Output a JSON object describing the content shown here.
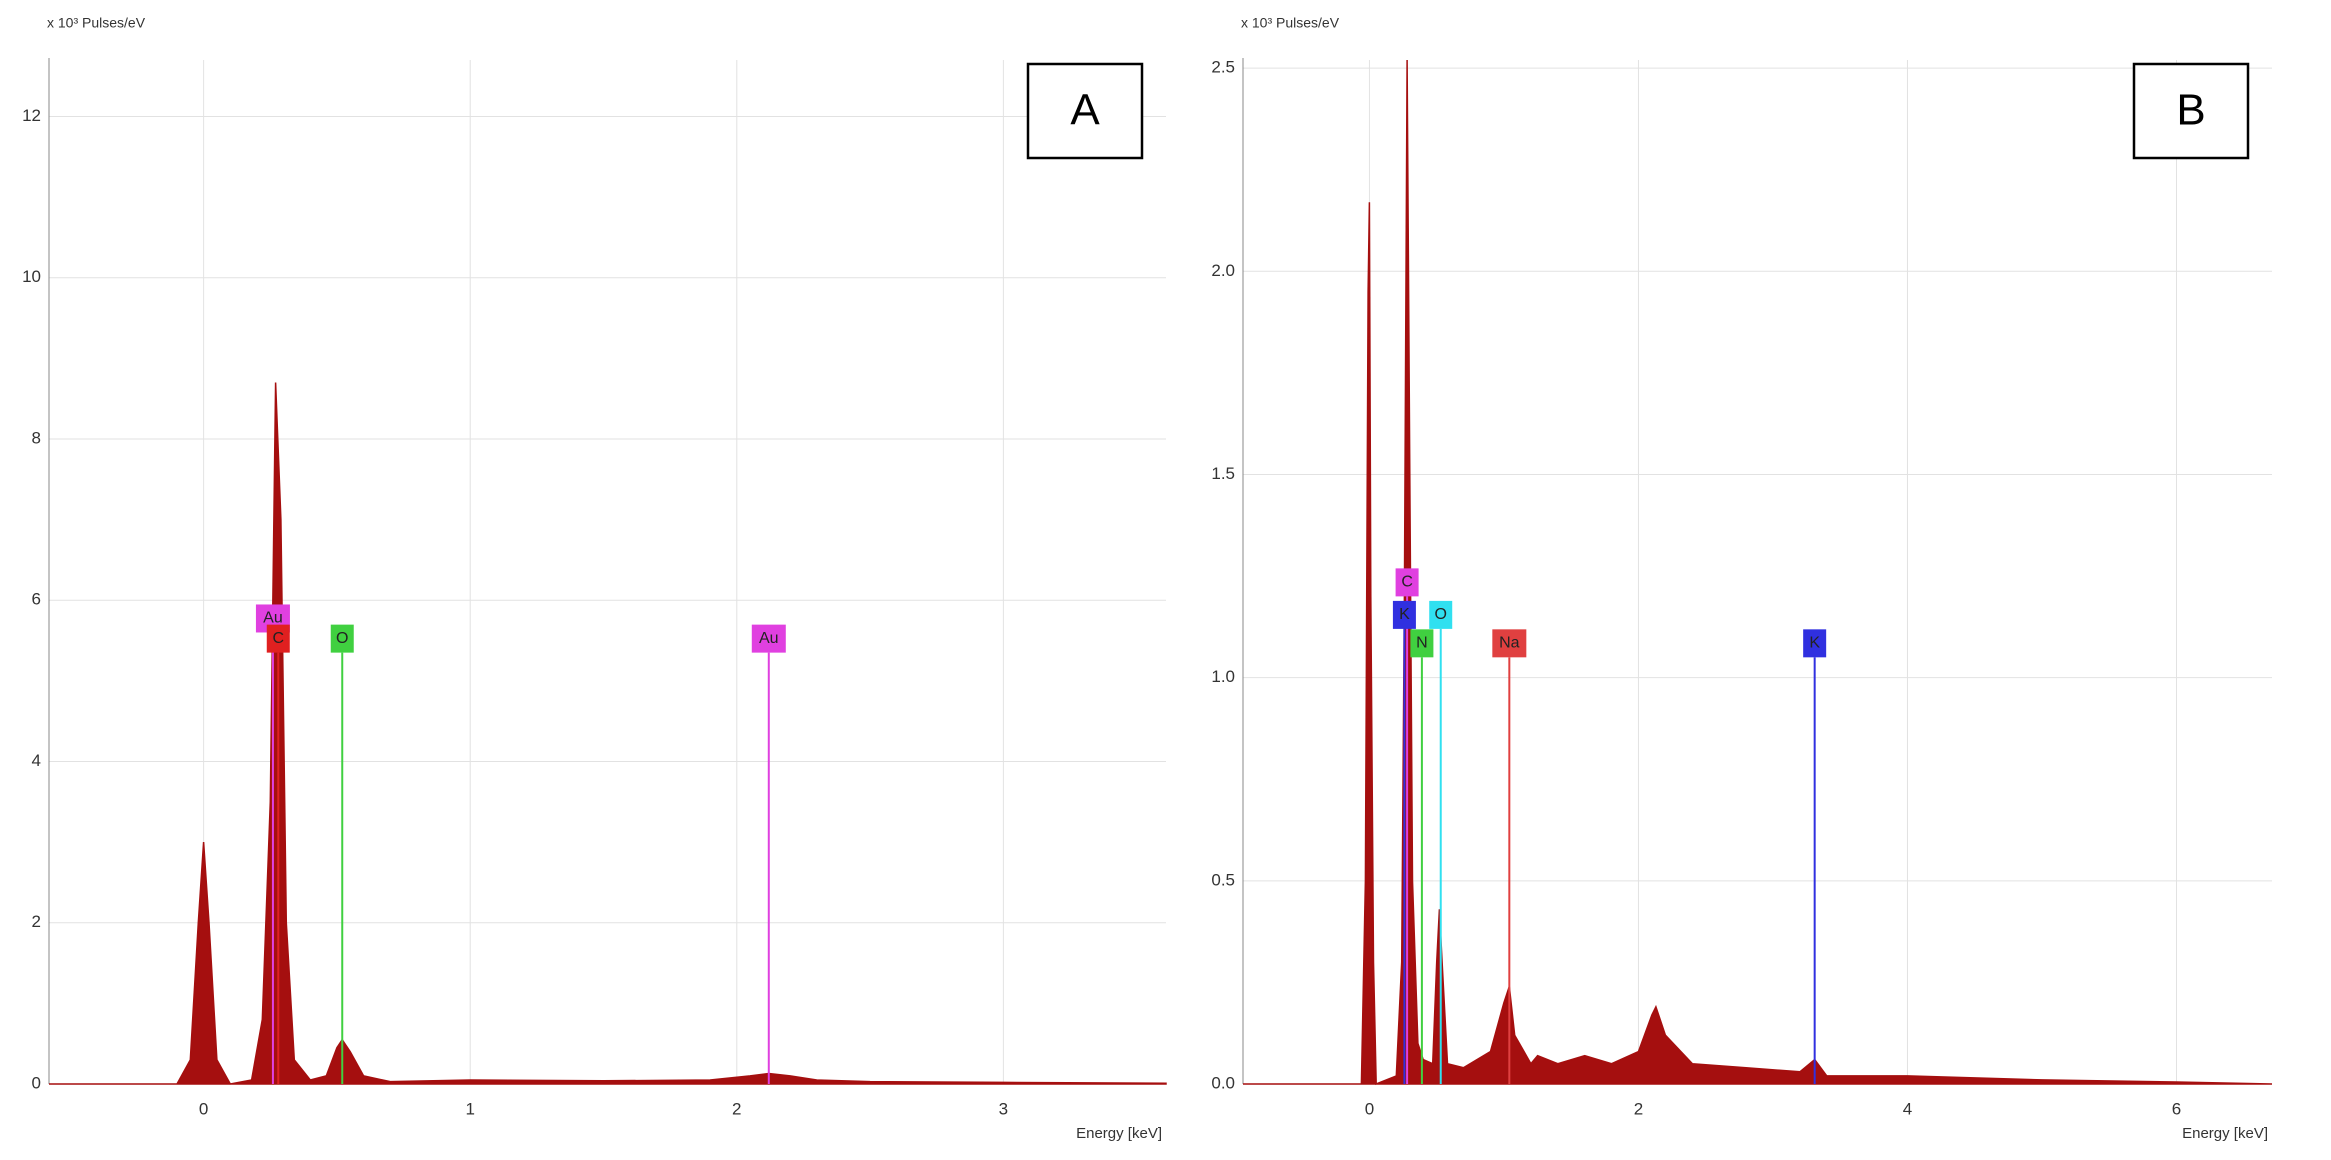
{
  "chart_data": [
    {
      "type": "area",
      "title": "A",
      "ylabel": "x 10³ Pulses/eV",
      "xlabel": "Energy [keV]",
      "color": "#a50f0f",
      "xlim": [
        -0.58,
        3.61
      ],
      "ylim": [
        0,
        12.7
      ],
      "xticks": [
        0,
        1,
        2,
        3
      ],
      "yticks": [
        0,
        2,
        4,
        6,
        8,
        10,
        12
      ],
      "grid": true,
      "x": [
        -0.58,
        -0.1,
        -0.05,
        -0.02,
        0,
        0.02,
        0.05,
        0.1,
        0.18,
        0.22,
        0.25,
        0.27,
        0.29,
        0.31,
        0.34,
        0.4,
        0.46,
        0.5,
        0.52,
        0.55,
        0.6,
        0.7,
        1.0,
        1.5,
        1.9,
        2.05,
        2.12,
        2.2,
        2.3,
        2.5,
        3.0,
        3.61
      ],
      "values": [
        0,
        0,
        0.3,
        2.0,
        3.0,
        2.0,
        0.3,
        0,
        0.05,
        0.8,
        3.5,
        8.7,
        7.0,
        2.0,
        0.3,
        0.05,
        0.1,
        0.45,
        0.55,
        0.4,
        0.1,
        0.03,
        0.05,
        0.04,
        0.05,
        0.1,
        0.13,
        0.1,
        0.05,
        0.03,
        0.02,
        0.01
      ],
      "markers": [
        {
          "label": "Au",
          "x": 0.26,
          "height": 5.6,
          "color": "#e040e0"
        },
        {
          "label": "C",
          "x": 0.28,
          "height": 5.35,
          "color": "#e02020"
        },
        {
          "label": "O",
          "x": 0.52,
          "height": 5.35,
          "color": "#40d040"
        },
        {
          "label": "Au",
          "x": 2.12,
          "height": 5.35,
          "color": "#e040e0"
        }
      ]
    },
    {
      "type": "area",
      "title": "B",
      "ylabel": "x 10³ Pulses/eV",
      "xlabel": "Energy [keV]",
      "color": "#a50f0f",
      "xlim": [
        -0.94,
        6.71
      ],
      "ylim": [
        0,
        2.52
      ],
      "xticks": [
        0,
        2,
        4,
        6
      ],
      "yticks": [
        {
          "value": 0,
          "label": "0.0"
        },
        0.5,
        {
          "value": 1,
          "label": "1.0"
        },
        1.5,
        {
          "value": 2,
          "label": "2.0"
        },
        2.5
      ],
      "grid": true,
      "x": [
        -0.94,
        -0.06,
        -0.03,
        -0.01,
        0,
        0.01,
        0.03,
        0.05,
        0.2,
        0.24,
        0.26,
        0.28,
        0.3,
        0.32,
        0.36,
        0.4,
        0.47,
        0.5,
        0.52,
        0.54,
        0.58,
        0.7,
        0.9,
        1.0,
        1.04,
        1.08,
        1.2,
        1.25,
        1.4,
        1.6,
        1.8,
        2.0,
        2.1,
        2.13,
        2.2,
        2.4,
        2.8,
        3.2,
        3.31,
        3.4,
        4.0,
        5.0,
        6.0,
        6.71
      ],
      "values": [
        0,
        0,
        0.5,
        1.95,
        2.17,
        1.2,
        0.3,
        0,
        0.02,
        0.3,
        1.2,
        2.52,
        1.5,
        0.5,
        0.1,
        0.06,
        0.05,
        0.3,
        0.43,
        0.3,
        0.05,
        0.04,
        0.08,
        0.2,
        0.24,
        0.12,
        0.05,
        0.07,
        0.05,
        0.07,
        0.05,
        0.08,
        0.17,
        0.19,
        0.12,
        0.05,
        0.04,
        0.03,
        0.06,
        0.02,
        0.02,
        0.01,
        0.005,
        0
      ],
      "markers": [
        {
          "label": "C",
          "x": 0.28,
          "height": 1.2,
          "color": "#e040e0"
        },
        {
          "label": "K",
          "x": 0.26,
          "height": 1.12,
          "color": "#3030e0"
        },
        {
          "label": "O",
          "x": 0.53,
          "height": 1.12,
          "color": "#30e0f0"
        },
        {
          "label": "N",
          "x": 0.39,
          "height": 1.05,
          "color": "#40d040"
        },
        {
          "label": "Na",
          "x": 1.04,
          "height": 1.05,
          "color": "#e04040"
        },
        {
          "label": "K",
          "x": 3.31,
          "height": 1.05,
          "color": "#3030e0"
        }
      ]
    }
  ]
}
